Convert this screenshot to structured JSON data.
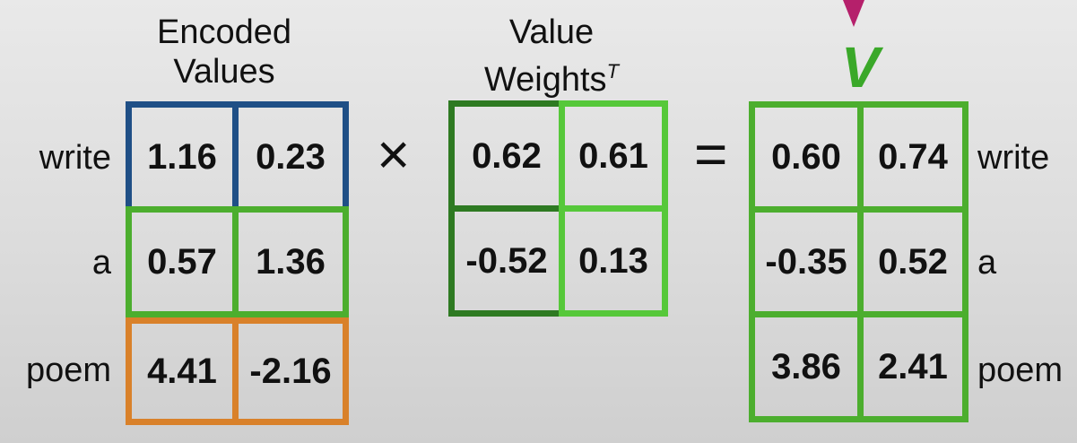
{
  "headers": {
    "encoded": [
      "Encoded",
      "Values"
    ],
    "weights": [
      "Value",
      "Weights"
    ],
    "weights_superscript": "T",
    "result": "V"
  },
  "operators": {
    "multiply": "×",
    "equals": "="
  },
  "row_labels": [
    "write",
    "a",
    "poem"
  ],
  "encoded_values": [
    [
      "1.16",
      "0.23"
    ],
    [
      "0.57",
      "1.36"
    ],
    [
      "4.41",
      "-2.16"
    ]
  ],
  "value_weights": [
    [
      "0.62",
      "0.61"
    ],
    [
      "-0.52",
      "0.13"
    ]
  ],
  "v_values": [
    [
      "0.60",
      "0.74"
    ],
    [
      "-0.35",
      "0.52"
    ],
    [
      "3.86",
      "2.41"
    ]
  ],
  "colors": {
    "row_write": "#1f4f86",
    "row_a": "#4cae2e",
    "row_poem": "#d9812a",
    "weights_col1": "#2e7a22",
    "weights_col2": "#56c83a",
    "v_matrix": "#4cae2e",
    "v_label": "#3aa829",
    "arrow": "#b5206b"
  }
}
